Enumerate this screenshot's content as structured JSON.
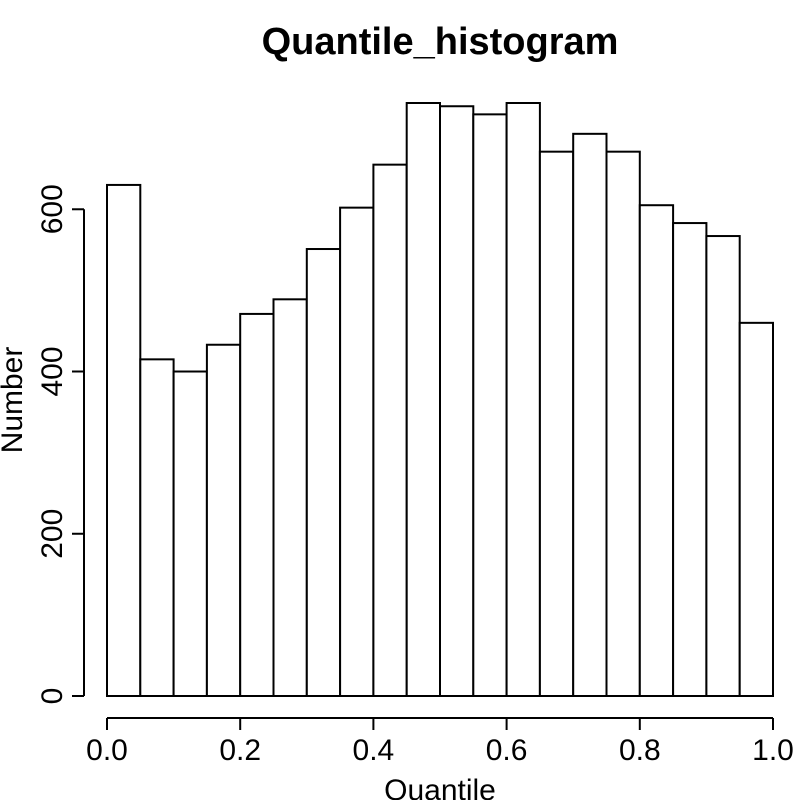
{
  "chart_data": {
    "type": "bar",
    "title": "Quantile_histogram",
    "xlabel": "Quantile",
    "ylabel": "Number",
    "bin_edges": [
      0.0,
      0.05,
      0.1,
      0.15,
      0.2,
      0.25,
      0.3,
      0.35,
      0.4,
      0.45,
      0.5,
      0.55,
      0.6,
      0.65,
      0.7,
      0.75,
      0.8,
      0.85,
      0.9,
      0.95,
      1.0
    ],
    "values": [
      630,
      415,
      400,
      433,
      471,
      489,
      551,
      602,
      655,
      731,
      727,
      717,
      731,
      671,
      693,
      671,
      605,
      583,
      567,
      460
    ],
    "xlim": [
      0,
      1
    ],
    "ylim": [
      0,
      731
    ],
    "x_ticks": [
      0.0,
      0.2,
      0.4,
      0.6,
      0.8,
      1.0
    ],
    "x_tick_labels": [
      "0.0",
      "0.2",
      "0.4",
      "0.6",
      "0.8",
      "1.0"
    ],
    "y_ticks": [
      0,
      200,
      400,
      600
    ],
    "y_tick_labels": [
      "0",
      "200",
      "400",
      "600"
    ],
    "grid": false,
    "legend": "none",
    "bar_fill": "#ffffff",
    "bar_stroke": "#000000"
  }
}
